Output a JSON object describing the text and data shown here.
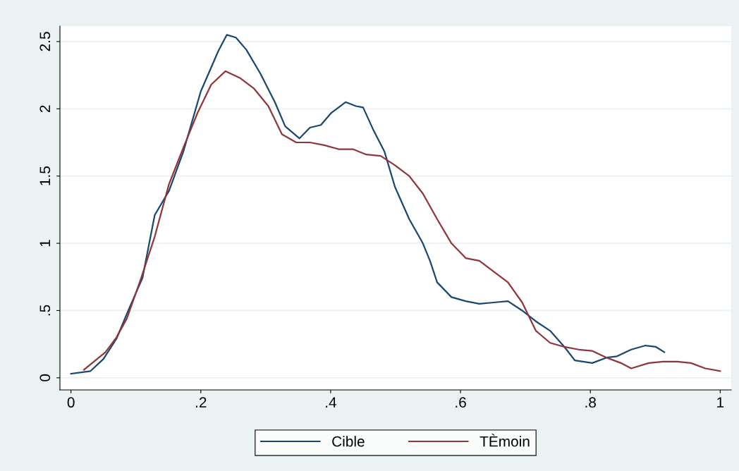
{
  "chart_data": {
    "type": "line",
    "xlim": [
      -0.017,
      1.017
    ],
    "ylim": [
      -0.09,
      2.615
    ],
    "xticks": [
      0,
      {
        "value": 0.2,
        "label": ".2"
      },
      {
        "value": 0.4,
        "label": ".4"
      },
      {
        "value": 0.6,
        "label": ".6"
      },
      {
        "value": 0.8,
        "label": ".8"
      },
      1
    ],
    "yticks": [
      0,
      {
        "value": 0.5,
        "label": ".5"
      },
      1,
      1.5,
      2,
      2.5
    ],
    "grid": "y",
    "legend": "bottom",
    "marker": "none",
    "line_style": "solid",
    "series": [
      {
        "name": "Cible",
        "color": "#1a476f",
        "x": [
          0,
          0.03,
          0.05,
          0.07,
          0.09,
          0.11,
          0.129,
          0.151,
          0.173,
          0.2,
          0.227,
          0.24,
          0.254,
          0.27,
          0.292,
          0.314,
          0.33,
          0.352,
          0.368,
          0.385,
          0.401,
          0.423,
          0.439,
          0.45,
          0.466,
          0.483,
          0.499,
          0.521,
          0.542,
          0.553,
          0.564,
          0.586,
          0.608,
          0.629,
          0.651,
          0.673,
          0.695,
          0.716,
          0.738,
          0.76,
          0.776,
          0.803,
          0.825,
          0.841,
          0.863,
          0.885,
          0.901,
          0.914
        ],
        "values": [
          0.03,
          0.05,
          0.14,
          0.29,
          0.52,
          0.74,
          1.21,
          1.39,
          1.68,
          2.13,
          2.43,
          2.55,
          2.53,
          2.44,
          2.26,
          2.05,
          1.87,
          1.78,
          1.86,
          1.88,
          1.97,
          2.05,
          2.02,
          2.01,
          1.84,
          1.68,
          1.42,
          1.18,
          1.0,
          0.87,
          0.71,
          0.6,
          0.57,
          0.55,
          0.56,
          0.57,
          0.5,
          0.42,
          0.35,
          0.23,
          0.13,
          0.11,
          0.15,
          0.16,
          0.21,
          0.24,
          0.23,
          0.19
        ]
      },
      {
        "name": "TÈmoin",
        "color": "#90353b",
        "x": [
          0.02,
          0.053,
          0.07,
          0.086,
          0.108,
          0.129,
          0.151,
          0.173,
          0.195,
          0.216,
          0.238,
          0.26,
          0.282,
          0.304,
          0.325,
          0.347,
          0.368,
          0.39,
          0.412,
          0.434,
          0.455,
          0.477,
          0.499,
          0.521,
          0.542,
          0.564,
          0.586,
          0.608,
          0.629,
          0.651,
          0.673,
          0.695,
          0.716,
          0.738,
          0.76,
          0.782,
          0.803,
          0.825,
          0.847,
          0.863,
          0.89,
          0.912,
          0.934,
          0.955,
          0.977,
          1.0
        ],
        "values": [
          0.06,
          0.19,
          0.3,
          0.44,
          0.74,
          1.05,
          1.44,
          1.71,
          1.97,
          2.18,
          2.28,
          2.23,
          2.15,
          2.02,
          1.81,
          1.75,
          1.75,
          1.73,
          1.7,
          1.7,
          1.66,
          1.65,
          1.58,
          1.5,
          1.37,
          1.18,
          1.0,
          0.89,
          0.87,
          0.79,
          0.71,
          0.56,
          0.35,
          0.26,
          0.23,
          0.21,
          0.2,
          0.15,
          0.11,
          0.07,
          0.11,
          0.12,
          0.12,
          0.11,
          0.07,
          0.05
        ]
      }
    ]
  }
}
